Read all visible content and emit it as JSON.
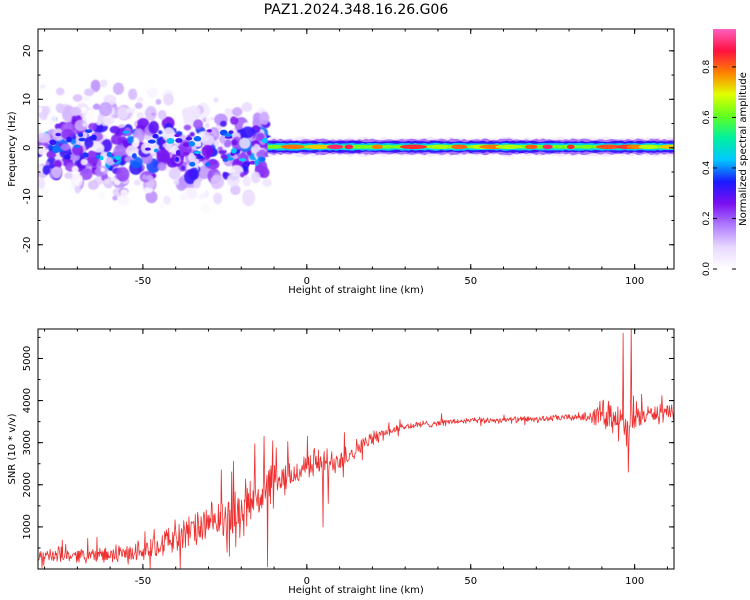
{
  "title": "PAZ1.2024.348.16.26.G06",
  "chart_data": [
    {
      "type": "heatmap",
      "xlabel": "Height of straight line (km)",
      "ylabel": "Frequency (Hz)",
      "xlim": [
        -82,
        112
      ],
      "ylim": [
        -25,
        24.5
      ],
      "x_ticks": [
        -50,
        0,
        50,
        100
      ],
      "y_ticks": [
        -20,
        -10,
        0,
        10,
        20
      ],
      "colorbar": {
        "label": "Normalized spectral amplitude",
        "range": [
          0,
          0.95
        ],
        "ticks": [
          0.0,
          0.2,
          0.4,
          0.6,
          0.8
        ],
        "tick_labels": [
          "0.0",
          "0.2",
          "0.4",
          "0.6",
          "0.8"
        ],
        "colormap": [
          "#ffffff",
          "#e8d8ff",
          "#b07cff",
          "#7a10f0",
          "#1a1aff",
          "#00c8ff",
          "#00f0a0",
          "#60ff20",
          "#e0ff00",
          "#ff8000",
          "#ff1040",
          "#ff60c0"
        ]
      },
      "scattered_noise": {
        "x_range": [
          -82,
          -12
        ],
        "freq_spread_hz": 10,
        "peak_amplitude": 0.35
      },
      "signal_band": {
        "x_range": [
          -12,
          112
        ],
        "center_hz": 0.2,
        "half_width_hz": 1.6,
        "core_amplitude": 0.85
      },
      "grid": false
    },
    {
      "type": "line",
      "xlabel": "Height of straight line (km)",
      "ylabel": "SNR (10 * v/v)",
      "xlim": [
        -82,
        112
      ],
      "ylim": [
        0,
        5700
      ],
      "x_ticks": [
        -50,
        0,
        50,
        100
      ],
      "y_ticks": [
        1000,
        2000,
        3000,
        4000,
        5000
      ],
      "color": "#ee3030",
      "grid": false,
      "series": [
        {
          "x": [
            -82,
            -75,
            -70,
            -65,
            -60,
            -55,
            -50,
            -45,
            -40,
            -35,
            -30,
            -25,
            -20,
            -17,
            -14,
            -12,
            -10,
            -8,
            -5,
            -2,
            0,
            3,
            6,
            9,
            12,
            15,
            18,
            21,
            24,
            27,
            30,
            35,
            40,
            45,
            50,
            55,
            60,
            65,
            70,
            75,
            80,
            85,
            88,
            91,
            94,
            96,
            98,
            99,
            100,
            103,
            106,
            109,
            112
          ],
          "y": [
            300,
            320,
            330,
            340,
            320,
            360,
            450,
            600,
            750,
            900,
            1050,
            1200,
            1400,
            1650,
            1800,
            1900,
            2000,
            2050,
            2200,
            2350,
            2450,
            2550,
            2450,
            2600,
            2700,
            2850,
            3000,
            3150,
            3250,
            3320,
            3380,
            3430,
            3470,
            3500,
            3520,
            3530,
            3540,
            3550,
            3560,
            3580,
            3600,
            3620,
            3650,
            3700,
            3650,
            3400,
            3200,
            3500,
            3600,
            3650,
            3700,
            3700,
            3650
          ],
          "noise_amplitude": [
            200,
            220,
            200,
            210,
            230,
            260,
            300,
            380,
            450,
            500,
            550,
            600,
            700,
            750,
            800,
            750,
            650,
            500,
            450,
            400,
            400,
            420,
            500,
            420,
            350,
            280,
            220,
            180,
            150,
            130,
            120,
            110,
            100,
            90,
            90,
            90,
            90,
            90,
            90,
            90,
            100,
            130,
            300,
            450,
            500,
            650,
            700,
            700,
            600,
            250,
            250,
            250,
            250
          ],
          "spikes": [
            {
              "x": -12,
              "y": 50
            },
            {
              "x": -13,
              "y": 3150
            },
            {
              "x": 5,
              "y": 1000
            },
            {
              "x": 96.5,
              "y": 5600
            },
            {
              "x": 98,
              "y": 2300
            },
            {
              "x": 99,
              "y": 5750
            }
          ]
        }
      ]
    }
  ]
}
